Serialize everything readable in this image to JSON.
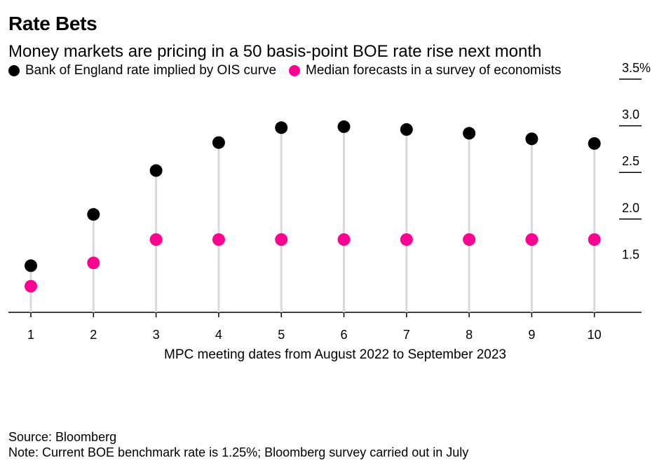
{
  "title": "Rate Bets",
  "subtitle": "Money markets are pricing in a 50 basis-point BOE rate rise next month",
  "legend": {
    "series1": "Bank of England rate implied by OIS curve",
    "series2": "Median forecasts in a survey of economists"
  },
  "colors": {
    "series1": "#000000",
    "series2": "#ff0090",
    "connector": "#d9d9d9"
  },
  "chart_data": {
    "type": "scatter",
    "subtype": "dumbbell",
    "categories": [
      "1",
      "2",
      "3",
      "4",
      "5",
      "6",
      "7",
      "8",
      "9",
      "10"
    ],
    "series": [
      {
        "name": "Bank of England rate implied by OIS curve",
        "values": [
          1.5,
          2.05,
          2.52,
          2.82,
          2.98,
          2.99,
          2.96,
          2.92,
          2.86,
          2.81
        ]
      },
      {
        "name": "Median forecasts in a survey of economists",
        "values": [
          1.28,
          1.53,
          1.78,
          1.78,
          1.78,
          1.78,
          1.78,
          1.78,
          1.78,
          1.78
        ]
      }
    ],
    "xlabel": "MPC meeting dates from August 2022 to September 2023",
    "ylabel": "",
    "ylim": [
      1.0,
      3.5
    ],
    "yticks": [
      1.5,
      2.0,
      2.5,
      3.0,
      3.5
    ],
    "ytick_labels": [
      "1.5",
      "2.0",
      "2.5",
      "3.0",
      "3.5%"
    ],
    "y_axis_position": "right"
  },
  "footer": {
    "source": "Source: Bloomberg",
    "note": "Note: Current BOE benchmark rate is 1.25%; Bloomberg survey carried out in July"
  }
}
